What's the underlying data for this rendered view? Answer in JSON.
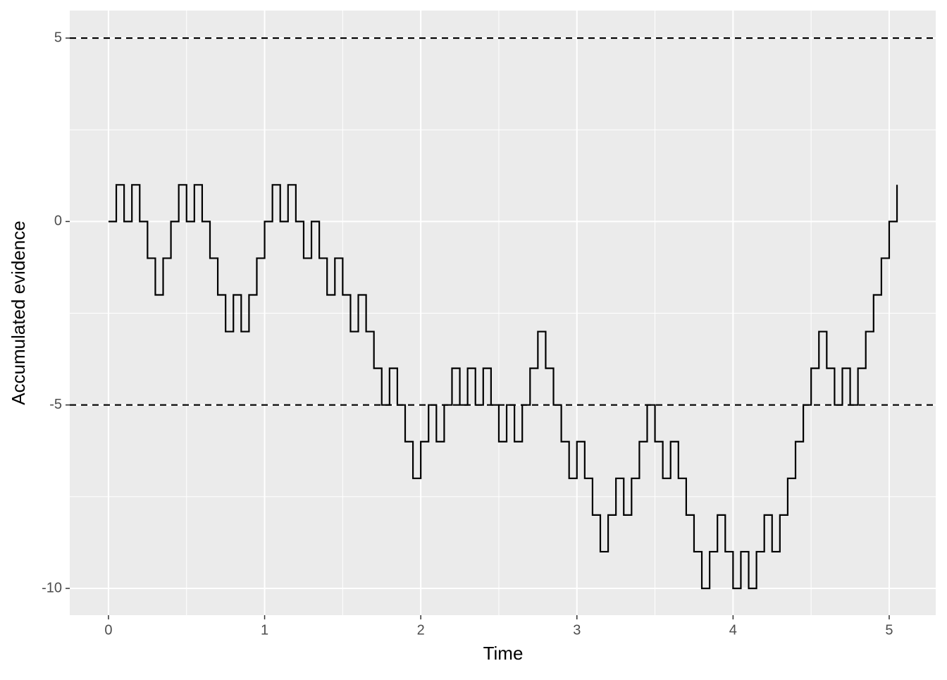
{
  "chart_data": {
    "type": "step",
    "x_label": "Time",
    "y_label": "Accumulated evidence",
    "x": [
      0,
      0.05,
      0.1,
      0.15,
      0.2,
      0.25,
      0.3,
      0.35,
      0.4,
      0.45,
      0.5,
      0.55,
      0.6,
      0.65,
      0.7,
      0.75,
      0.8,
      0.85,
      0.9,
      0.95,
      1,
      1.05,
      1.1,
      1.15,
      1.2,
      1.25,
      1.3,
      1.35,
      1.4,
      1.45,
      1.5,
      1.55,
      1.6,
      1.65,
      1.7,
      1.75,
      1.8,
      1.85,
      1.9,
      1.95,
      2,
      2.05,
      2.1,
      2.15,
      2.2,
      2.25,
      2.3,
      2.35,
      2.4,
      2.45,
      2.5,
      2.55,
      2.6,
      2.65,
      2.7,
      2.75,
      2.8,
      2.85,
      2.9,
      2.95,
      3,
      3.05,
      3.1,
      3.15,
      3.2,
      3.25,
      3.3,
      3.35,
      3.4,
      3.45,
      3.5,
      3.55,
      3.6,
      3.65,
      3.7,
      3.75,
      3.8,
      3.85,
      3.9,
      3.95,
      4,
      4.05,
      4.1,
      4.15,
      4.2,
      4.25,
      4.3,
      4.35,
      4.4,
      4.45,
      4.5,
      4.55,
      4.6,
      4.65,
      4.7,
      4.75,
      4.8,
      4.85,
      4.9,
      4.95,
      5,
      5.05
    ],
    "values": [
      0,
      1,
      0,
      1,
      0,
      -1,
      -2,
      -1,
      0,
      1,
      0,
      1,
      0,
      -1,
      -2,
      -3,
      -2,
      -3,
      -2,
      -1,
      0,
      1,
      0,
      1,
      0,
      -1,
      0,
      -1,
      -2,
      -1,
      -2,
      -3,
      -2,
      -3,
      -4,
      -5,
      -4,
      -5,
      -6,
      -7,
      -6,
      -5,
      -6,
      -5,
      -4,
      -5,
      -4,
      -5,
      -4,
      -5,
      -6,
      -5,
      -6,
      -5,
      -4,
      -3,
      -4,
      -5,
      -6,
      -7,
      -6,
      -7,
      -8,
      -9,
      -8,
      -7,
      -8,
      -7,
      -6,
      -5,
      -6,
      -7,
      -6,
      -7,
      -8,
      -9,
      -10,
      -9,
      -8,
      -9,
      -10,
      -9,
      -10,
      -9,
      -8,
      -9,
      -8,
      -7,
      -6,
      -5,
      -4,
      -3,
      -4,
      -5,
      -4,
      -5,
      -4,
      -3,
      -2,
      -1,
      0,
      1
    ],
    "color": "#000000",
    "hlines": [
      5,
      -5
    ],
    "xlim": [
      -0.248,
      5.298
    ],
    "xticks": [
      0,
      1,
      2,
      3,
      4,
      5
    ],
    "ylim": [
      -10.73,
      5.75
    ],
    "yticks": [
      -10,
      -5,
      0,
      5
    ],
    "grid": true
  }
}
